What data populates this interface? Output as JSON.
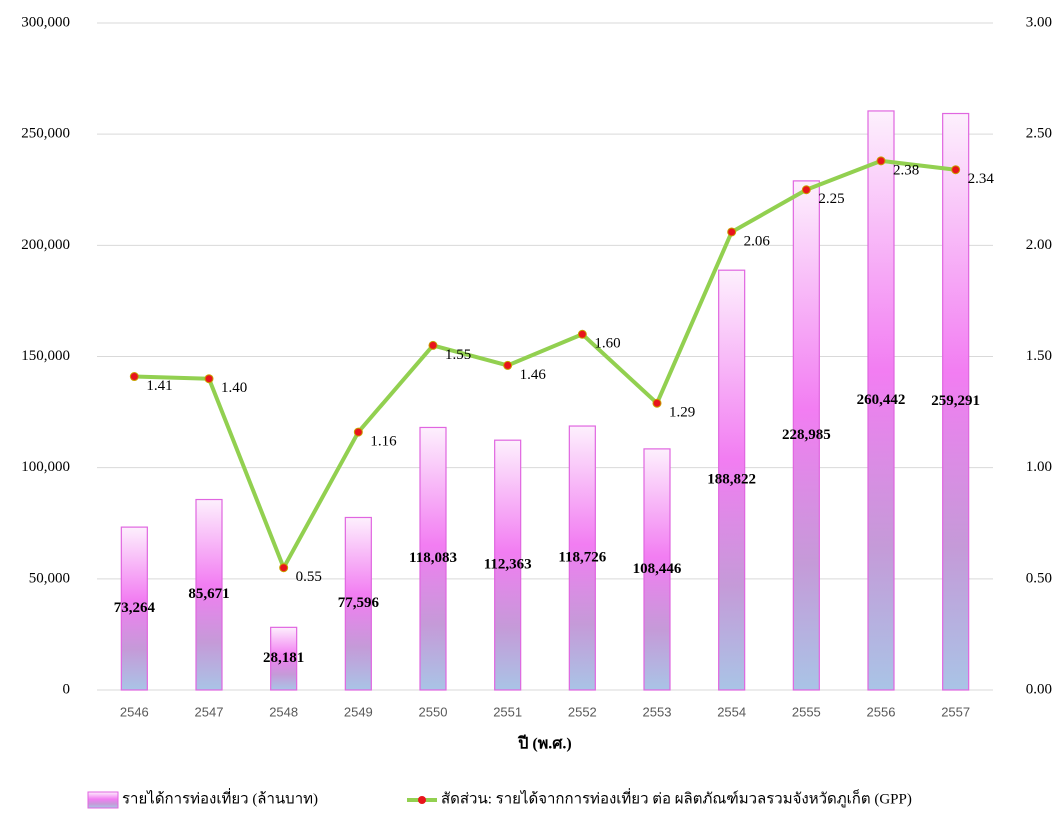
{
  "chart_data": {
    "type": "bar",
    "categories": [
      "2546",
      "2547",
      "2548",
      "2549",
      "2550",
      "2551",
      "2552",
      "2553",
      "2554",
      "2555",
      "2556",
      "2557"
    ],
    "x_label": "ปี (พ.ศ.)",
    "series": [
      {
        "name": "รายได้การท่องเที่ยว (ล้านบาท)",
        "type": "bar",
        "color": "#e066e0",
        "values": [
          73264,
          85671,
          28181,
          77596,
          118083,
          112363,
          118726,
          108446,
          188822,
          228985,
          260442,
          259291
        ],
        "value_labels": [
          "73,264",
          "85,671",
          "28,181",
          "77,596",
          "118,083",
          "112,363",
          "118,726",
          "108,446",
          "188,822",
          "228,985",
          "260,442",
          "259,291"
        ]
      },
      {
        "name": "สัดส่วน: รายได้จากการท่องเที่ยว ต่อ ผลิตภัณฑ์มวลรวมจังหวัดภูเก็ต (GPP)",
        "type": "line",
        "axis": "y2",
        "color": "#92d050",
        "marker_color": "#e8141c",
        "values": [
          1.41,
          1.4,
          0.55,
          1.16,
          1.55,
          1.46,
          1.6,
          1.29,
          2.06,
          2.25,
          2.38,
          2.34
        ],
        "value_labels": [
          "1.41",
          "1.40",
          "0.55",
          "1.16",
          "1.55",
          "1.46",
          "1.60",
          "1.29",
          "2.06",
          "2.25",
          "2.38",
          "2.34"
        ]
      }
    ],
    "ylim": [
      0,
      300000
    ],
    "yticks": [
      0,
      {
        "value": 50000,
        "label": "50,000"
      },
      {
        "value": 100000,
        "label": "100,000"
      },
      {
        "value": 150000,
        "label": "150,000"
      },
      {
        "value": 200000,
        "label": "200,000"
      },
      {
        "value": 250000,
        "label": "250,000"
      },
      {
        "value": 300000,
        "label": "300,000"
      }
    ],
    "y2lim": [
      0,
      3
    ],
    "y2ticks": [
      {
        "value": 0,
        "label": "0.00"
      },
      {
        "value": 0.5,
        "label": "0.50"
      },
      {
        "value": 1,
        "label": "1.00"
      },
      {
        "value": 1.5,
        "label": "1.50"
      },
      {
        "value": 2,
        "label": "2.00"
      },
      {
        "value": 2.5,
        "label": "2.50"
      },
      {
        "value": 3,
        "label": "3.00"
      }
    ],
    "grid": true,
    "legend": "bottom"
  }
}
